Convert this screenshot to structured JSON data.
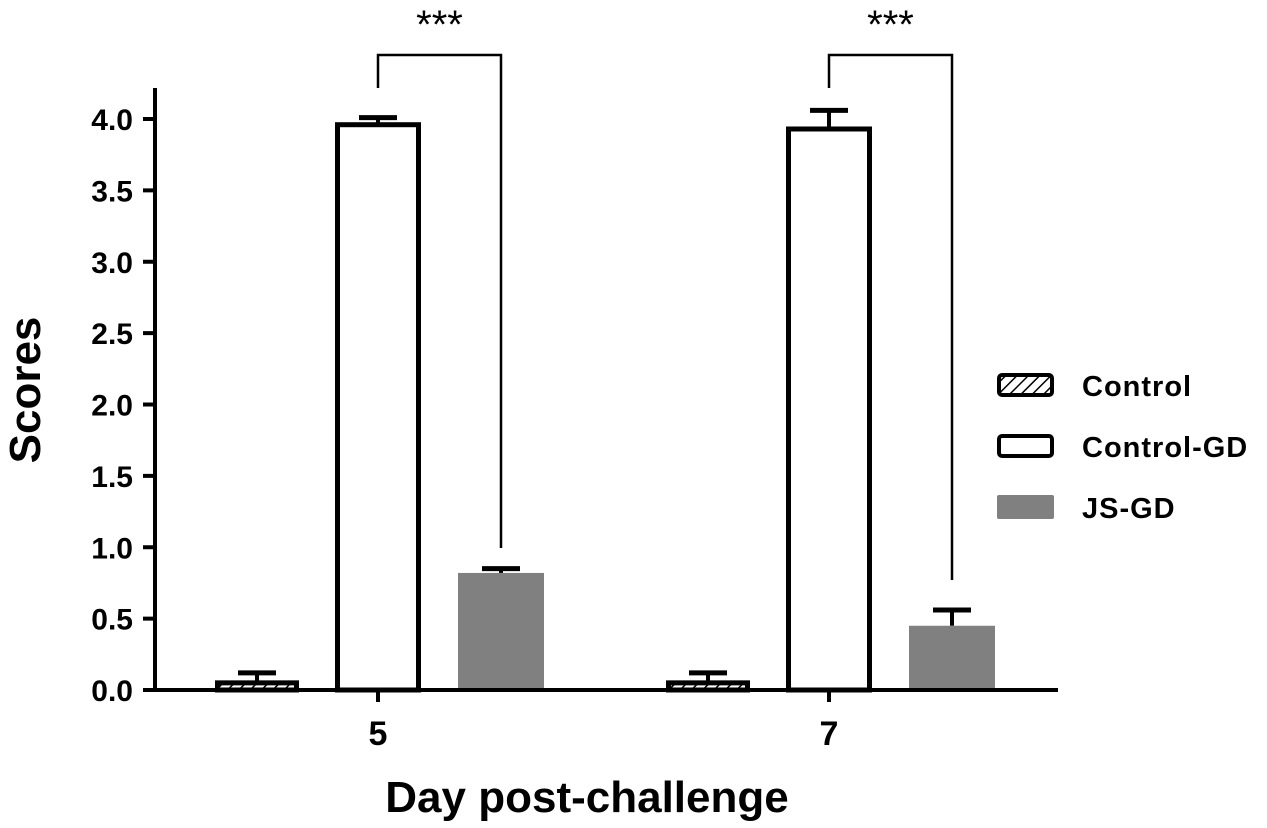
{
  "chart_data": {
    "type": "bar",
    "categories": [
      "5",
      "7"
    ],
    "series": [
      {
        "name": "Control",
        "values": [
          0.05,
          0.05
        ],
        "errors": [
          0.07,
          0.07
        ],
        "style": "hatched"
      },
      {
        "name": "Control-GD",
        "values": [
          3.96,
          3.93
        ],
        "errors": [
          0.05,
          0.13
        ],
        "style": "open"
      },
      {
        "name": "JS-GD",
        "values": [
          0.82,
          0.45
        ],
        "errors": [
          0.03,
          0.11
        ],
        "style": "filled"
      }
    ],
    "xlabel": "Day post-challenge",
    "ylabel": "Scores",
    "ylim": [
      0,
      4.0
    ],
    "yticks": [
      "0.0",
      "0.5",
      "1.0",
      "1.5",
      "2.0",
      "2.5",
      "3.0",
      "3.5",
      "4.0"
    ],
    "grid": false,
    "legend_position": "right",
    "colors": {
      "axis": "#000000",
      "filled": "#808080",
      "open": "#ffffff"
    },
    "significance": [
      {
        "category": "5",
        "from_series": "Control-GD",
        "to_series": "JS-GD",
        "label": "***"
      },
      {
        "category": "7",
        "from_series": "Control-GD",
        "to_series": "JS-GD",
        "label": "***"
      }
    ]
  }
}
